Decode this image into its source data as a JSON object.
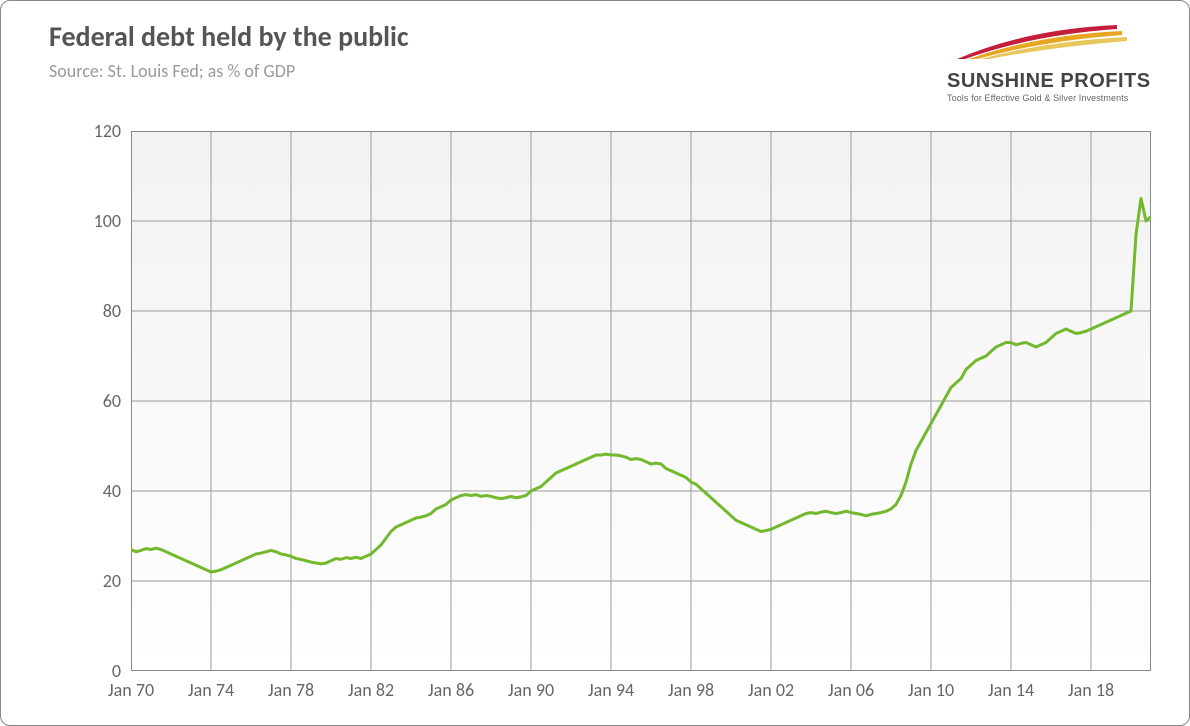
{
  "header": {
    "title": "Federal debt held by the public",
    "subtitle": "Source: St. Louis Fed; as % of GDP"
  },
  "logo": {
    "name": "SUNSHINE PROFITS",
    "tagline": "Tools for Effective Gold & Silver Investments",
    "swoosh_colors": [
      "#c41e3a",
      "#e8a521",
      "#e8c75a"
    ]
  },
  "chart": {
    "type": "line",
    "background_top": "#f2f2f2",
    "background_bottom": "#ffffff",
    "grid_color": "#9a9a9a",
    "grid_width": 1,
    "axis_color": "#888888",
    "line_color": "#73b92e",
    "line_width": 3,
    "ylim": [
      0,
      120
    ],
    "ytick_step": 20,
    "yticks": [
      0,
      20,
      40,
      60,
      80,
      100,
      120
    ],
    "x_start_year": 1970,
    "x_end_year": 2021,
    "xtick_step_years": 4,
    "xtick_labels": [
      "Jan 70",
      "Jan 74",
      "Jan 78",
      "Jan 82",
      "Jan 86",
      "Jan 90",
      "Jan 94",
      "Jan 98",
      "Jan 02",
      "Jan 06",
      "Jan 10",
      "Jan 14",
      "Jan 18"
    ],
    "xtick_years": [
      1970,
      1974,
      1978,
      1982,
      1986,
      1990,
      1994,
      1998,
      2002,
      2006,
      2010,
      2014,
      2018
    ],
    "label_fontsize": 18,
    "label_color": "#666666",
    "series": [
      {
        "t": 1970.0,
        "v": 27.0
      },
      {
        "t": 1970.25,
        "v": 26.5
      },
      {
        "t": 1970.5,
        "v": 26.8
      },
      {
        "t": 1970.75,
        "v": 27.2
      },
      {
        "t": 1971.0,
        "v": 27.0
      },
      {
        "t": 1971.25,
        "v": 27.3
      },
      {
        "t": 1971.5,
        "v": 27.0
      },
      {
        "t": 1971.75,
        "v": 26.5
      },
      {
        "t": 1972.0,
        "v": 26.0
      },
      {
        "t": 1972.25,
        "v": 25.5
      },
      {
        "t": 1972.5,
        "v": 25.0
      },
      {
        "t": 1972.75,
        "v": 24.5
      },
      {
        "t": 1973.0,
        "v": 24.0
      },
      {
        "t": 1973.25,
        "v": 23.5
      },
      {
        "t": 1973.5,
        "v": 23.0
      },
      {
        "t": 1973.75,
        "v": 22.5
      },
      {
        "t": 1974.0,
        "v": 22.0
      },
      {
        "t": 1974.25,
        "v": 22.2
      },
      {
        "t": 1974.5,
        "v": 22.5
      },
      {
        "t": 1974.75,
        "v": 23.0
      },
      {
        "t": 1975.0,
        "v": 23.5
      },
      {
        "t": 1975.25,
        "v": 24.0
      },
      {
        "t": 1975.5,
        "v": 24.5
      },
      {
        "t": 1975.75,
        "v": 25.0
      },
      {
        "t": 1976.0,
        "v": 25.5
      },
      {
        "t": 1976.25,
        "v": 26.0
      },
      {
        "t": 1976.5,
        "v": 26.2
      },
      {
        "t": 1976.75,
        "v": 26.5
      },
      {
        "t": 1977.0,
        "v": 26.8
      },
      {
        "t": 1977.25,
        "v": 26.5
      },
      {
        "t": 1977.5,
        "v": 26.0
      },
      {
        "t": 1977.75,
        "v": 25.8
      },
      {
        "t": 1978.0,
        "v": 25.5
      },
      {
        "t": 1978.25,
        "v": 25.0
      },
      {
        "t": 1978.5,
        "v": 24.8
      },
      {
        "t": 1978.75,
        "v": 24.5
      },
      {
        "t": 1979.0,
        "v": 24.2
      },
      {
        "t": 1979.25,
        "v": 24.0
      },
      {
        "t": 1979.5,
        "v": 23.8
      },
      {
        "t": 1979.75,
        "v": 24.0
      },
      {
        "t": 1980.0,
        "v": 24.5
      },
      {
        "t": 1980.25,
        "v": 25.0
      },
      {
        "t": 1980.5,
        "v": 24.8
      },
      {
        "t": 1980.75,
        "v": 25.2
      },
      {
        "t": 1981.0,
        "v": 25.0
      },
      {
        "t": 1981.25,
        "v": 25.3
      },
      {
        "t": 1981.5,
        "v": 25.0
      },
      {
        "t": 1981.75,
        "v": 25.5
      },
      {
        "t": 1982.0,
        "v": 26.0
      },
      {
        "t": 1982.25,
        "v": 27.0
      },
      {
        "t": 1982.5,
        "v": 28.0
      },
      {
        "t": 1982.75,
        "v": 29.5
      },
      {
        "t": 1983.0,
        "v": 31.0
      },
      {
        "t": 1983.25,
        "v": 32.0
      },
      {
        "t": 1983.5,
        "v": 32.5
      },
      {
        "t": 1983.75,
        "v": 33.0
      },
      {
        "t": 1984.0,
        "v": 33.5
      },
      {
        "t": 1984.25,
        "v": 34.0
      },
      {
        "t": 1984.5,
        "v": 34.2
      },
      {
        "t": 1984.75,
        "v": 34.5
      },
      {
        "t": 1985.0,
        "v": 35.0
      },
      {
        "t": 1985.25,
        "v": 36.0
      },
      {
        "t": 1985.5,
        "v": 36.5
      },
      {
        "t": 1985.75,
        "v": 37.0
      },
      {
        "t": 1986.0,
        "v": 38.0
      },
      {
        "t": 1986.25,
        "v": 38.5
      },
      {
        "t": 1986.5,
        "v": 39.0
      },
      {
        "t": 1986.75,
        "v": 39.2
      },
      {
        "t": 1987.0,
        "v": 39.0
      },
      {
        "t": 1987.25,
        "v": 39.2
      },
      {
        "t": 1987.5,
        "v": 38.8
      },
      {
        "t": 1987.75,
        "v": 39.0
      },
      {
        "t": 1988.0,
        "v": 38.8
      },
      {
        "t": 1988.25,
        "v": 38.5
      },
      {
        "t": 1988.5,
        "v": 38.3
      },
      {
        "t": 1988.75,
        "v": 38.5
      },
      {
        "t": 1989.0,
        "v": 38.8
      },
      {
        "t": 1989.25,
        "v": 38.5
      },
      {
        "t": 1989.5,
        "v": 38.7
      },
      {
        "t": 1989.75,
        "v": 39.0
      },
      {
        "t": 1990.0,
        "v": 40.0
      },
      {
        "t": 1990.25,
        "v": 40.5
      },
      {
        "t": 1990.5,
        "v": 41.0
      },
      {
        "t": 1990.75,
        "v": 42.0
      },
      {
        "t": 1991.0,
        "v": 43.0
      },
      {
        "t": 1991.25,
        "v": 44.0
      },
      {
        "t": 1991.5,
        "v": 44.5
      },
      {
        "t": 1991.75,
        "v": 45.0
      },
      {
        "t": 1992.0,
        "v": 45.5
      },
      {
        "t": 1992.25,
        "v": 46.0
      },
      {
        "t": 1992.5,
        "v": 46.5
      },
      {
        "t": 1992.75,
        "v": 47.0
      },
      {
        "t": 1993.0,
        "v": 47.5
      },
      {
        "t": 1993.25,
        "v": 48.0
      },
      {
        "t": 1993.5,
        "v": 48.0
      },
      {
        "t": 1993.75,
        "v": 48.2
      },
      {
        "t": 1994.0,
        "v": 48.0
      },
      {
        "t": 1994.25,
        "v": 48.0
      },
      {
        "t": 1994.5,
        "v": 47.8
      },
      {
        "t": 1994.75,
        "v": 47.5
      },
      {
        "t": 1995.0,
        "v": 47.0
      },
      {
        "t": 1995.25,
        "v": 47.2
      },
      {
        "t": 1995.5,
        "v": 47.0
      },
      {
        "t": 1995.75,
        "v": 46.5
      },
      {
        "t": 1996.0,
        "v": 46.0
      },
      {
        "t": 1996.25,
        "v": 46.2
      },
      {
        "t": 1996.5,
        "v": 46.0
      },
      {
        "t": 1996.75,
        "v": 45.0
      },
      {
        "t": 1997.0,
        "v": 44.5
      },
      {
        "t": 1997.25,
        "v": 44.0
      },
      {
        "t": 1997.5,
        "v": 43.5
      },
      {
        "t": 1997.75,
        "v": 43.0
      },
      {
        "t": 1998.0,
        "v": 42.0
      },
      {
        "t": 1998.25,
        "v": 41.5
      },
      {
        "t": 1998.5,
        "v": 40.5
      },
      {
        "t": 1998.75,
        "v": 39.5
      },
      {
        "t": 1999.0,
        "v": 38.5
      },
      {
        "t": 1999.25,
        "v": 37.5
      },
      {
        "t": 1999.5,
        "v": 36.5
      },
      {
        "t": 1999.75,
        "v": 35.5
      },
      {
        "t": 2000.0,
        "v": 34.5
      },
      {
        "t": 2000.25,
        "v": 33.5
      },
      {
        "t": 2000.5,
        "v": 33.0
      },
      {
        "t": 2000.75,
        "v": 32.5
      },
      {
        "t": 2001.0,
        "v": 32.0
      },
      {
        "t": 2001.25,
        "v": 31.5
      },
      {
        "t": 2001.5,
        "v": 31.0
      },
      {
        "t": 2001.75,
        "v": 31.2
      },
      {
        "t": 2002.0,
        "v": 31.5
      },
      {
        "t": 2002.25,
        "v": 32.0
      },
      {
        "t": 2002.5,
        "v": 32.5
      },
      {
        "t": 2002.75,
        "v": 33.0
      },
      {
        "t": 2003.0,
        "v": 33.5
      },
      {
        "t": 2003.25,
        "v": 34.0
      },
      {
        "t": 2003.5,
        "v": 34.5
      },
      {
        "t": 2003.75,
        "v": 35.0
      },
      {
        "t": 2004.0,
        "v": 35.2
      },
      {
        "t": 2004.25,
        "v": 35.0
      },
      {
        "t": 2004.5,
        "v": 35.3
      },
      {
        "t": 2004.75,
        "v": 35.5
      },
      {
        "t": 2005.0,
        "v": 35.2
      },
      {
        "t": 2005.25,
        "v": 35.0
      },
      {
        "t": 2005.5,
        "v": 35.2
      },
      {
        "t": 2005.75,
        "v": 35.5
      },
      {
        "t": 2006.0,
        "v": 35.2
      },
      {
        "t": 2006.25,
        "v": 35.0
      },
      {
        "t": 2006.5,
        "v": 34.8
      },
      {
        "t": 2006.75,
        "v": 34.5
      },
      {
        "t": 2007.0,
        "v": 34.8
      },
      {
        "t": 2007.25,
        "v": 35.0
      },
      {
        "t": 2007.5,
        "v": 35.2
      },
      {
        "t": 2007.75,
        "v": 35.5
      },
      {
        "t": 2008.0,
        "v": 36.0
      },
      {
        "t": 2008.25,
        "v": 37.0
      },
      {
        "t": 2008.5,
        "v": 39.0
      },
      {
        "t": 2008.75,
        "v": 42.0
      },
      {
        "t": 2009.0,
        "v": 46.0
      },
      {
        "t": 2009.25,
        "v": 49.0
      },
      {
        "t": 2009.5,
        "v": 51.0
      },
      {
        "t": 2009.75,
        "v": 53.0
      },
      {
        "t": 2010.0,
        "v": 55.0
      },
      {
        "t": 2010.25,
        "v": 57.0
      },
      {
        "t": 2010.5,
        "v": 59.0
      },
      {
        "t": 2010.75,
        "v": 61.0
      },
      {
        "t": 2011.0,
        "v": 63.0
      },
      {
        "t": 2011.25,
        "v": 64.0
      },
      {
        "t": 2011.5,
        "v": 65.0
      },
      {
        "t": 2011.75,
        "v": 67.0
      },
      {
        "t": 2012.0,
        "v": 68.0
      },
      {
        "t": 2012.25,
        "v": 69.0
      },
      {
        "t": 2012.5,
        "v": 69.5
      },
      {
        "t": 2012.75,
        "v": 70.0
      },
      {
        "t": 2013.0,
        "v": 71.0
      },
      {
        "t": 2013.25,
        "v": 72.0
      },
      {
        "t": 2013.5,
        "v": 72.5
      },
      {
        "t": 2013.75,
        "v": 73.0
      },
      {
        "t": 2014.0,
        "v": 73.0
      },
      {
        "t": 2014.25,
        "v": 72.5
      },
      {
        "t": 2014.5,
        "v": 72.8
      },
      {
        "t": 2014.75,
        "v": 73.0
      },
      {
        "t": 2015.0,
        "v": 72.5
      },
      {
        "t": 2015.25,
        "v": 72.0
      },
      {
        "t": 2015.5,
        "v": 72.5
      },
      {
        "t": 2015.75,
        "v": 73.0
      },
      {
        "t": 2016.0,
        "v": 74.0
      },
      {
        "t": 2016.25,
        "v": 75.0
      },
      {
        "t": 2016.5,
        "v": 75.5
      },
      {
        "t": 2016.75,
        "v": 76.0
      },
      {
        "t": 2017.0,
        "v": 75.5
      },
      {
        "t": 2017.25,
        "v": 75.0
      },
      {
        "t": 2017.5,
        "v": 75.2
      },
      {
        "t": 2017.75,
        "v": 75.5
      },
      {
        "t": 2018.0,
        "v": 76.0
      },
      {
        "t": 2018.25,
        "v": 76.5
      },
      {
        "t": 2018.5,
        "v": 77.0
      },
      {
        "t": 2018.75,
        "v": 77.5
      },
      {
        "t": 2019.0,
        "v": 78.0
      },
      {
        "t": 2019.25,
        "v": 78.5
      },
      {
        "t": 2019.5,
        "v": 79.0
      },
      {
        "t": 2019.75,
        "v": 79.5
      },
      {
        "t": 2020.0,
        "v": 80.0
      },
      {
        "t": 2020.25,
        "v": 97.0
      },
      {
        "t": 2020.5,
        "v": 105.0
      },
      {
        "t": 2020.75,
        "v": 100.0
      },
      {
        "t": 2021.0,
        "v": 101.0
      }
    ]
  }
}
